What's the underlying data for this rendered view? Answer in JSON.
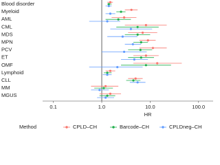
{
  "chart_data": {
    "type": "forest",
    "categories": [
      "Blood disorder",
      "Myeloid",
      "AML",
      "CML",
      "MDS",
      "MPN",
      "PCV",
      "ET",
      "OMF",
      "Lymphoid",
      "CLL",
      "MM",
      "MGUS"
    ],
    "series": [
      {
        "name": "CPLD–CH",
        "color": "#f8766d",
        "values": [
          1.5,
          4.1,
          2.9,
          8.2,
          7.0,
          9.0,
          11.4,
          8.2,
          14,
          1.5,
          5.0,
          1.2,
          1.5
        ],
        "lower": [
          1.3,
          3.0,
          1.6,
          3.0,
          3.5,
          6.0,
          6.0,
          4.5,
          4.5,
          1.2,
          3.5,
          0.6,
          0.9
        ],
        "upper": [
          1.7,
          5.5,
          5.2,
          22,
          14,
          13,
          22,
          15,
          45,
          1.9,
          7.0,
          2.2,
          2.5
        ]
      },
      {
        "name": "Barcode–CH",
        "color": "#1fae4b",
        "values": [
          1.4,
          2.5,
          2.2,
          5.5,
          5.5,
          6.5,
          6.3,
          6.5,
          8.2,
          1.3,
          4.5,
          1.1,
          1.3
        ],
        "lower": [
          1.3,
          2.0,
          1.2,
          2.0,
          3.0,
          4.5,
          3.5,
          3.5,
          2.5,
          1.1,
          3.2,
          0.7,
          0.9
        ],
        "upper": [
          1.6,
          3.1,
          4.0,
          15,
          10,
          9.0,
          11,
          12,
          27,
          1.6,
          6.3,
          1.7,
          1.9
        ]
      },
      {
        "name": "CPLDneg–CH",
        "color": "#619cff",
        "values": [
          1.4,
          1.5,
          1.3,
          4.0,
          2.7,
          4.4,
          2.9,
          4.7,
          2.1,
          1.3,
          5.5,
          0.9,
          1.2
        ],
        "lower": [
          1.2,
          1.2,
          0.55,
          1.5,
          1.3,
          3.0,
          1.0,
          2.5,
          0.55,
          1.05,
          3.8,
          0.6,
          0.8
        ],
        "upper": [
          1.6,
          1.9,
          2.4,
          11,
          5.5,
          6.5,
          8.5,
          9.0,
          7.0,
          1.6,
          8.0,
          1.4,
          1.8
        ]
      }
    ],
    "xlim": [
      0.06,
      200
    ],
    "log_x": true,
    "xticks": [
      0.1,
      {
        "value": 1,
        "label": "1.0"
      },
      {
        "value": 10,
        "label": "10.0"
      },
      {
        "value": 100,
        "label": "100.0"
      }
    ],
    "reference_line": 1,
    "xlabel": "HR",
    "legend_title": "Method",
    "legend_position": "bottom"
  }
}
